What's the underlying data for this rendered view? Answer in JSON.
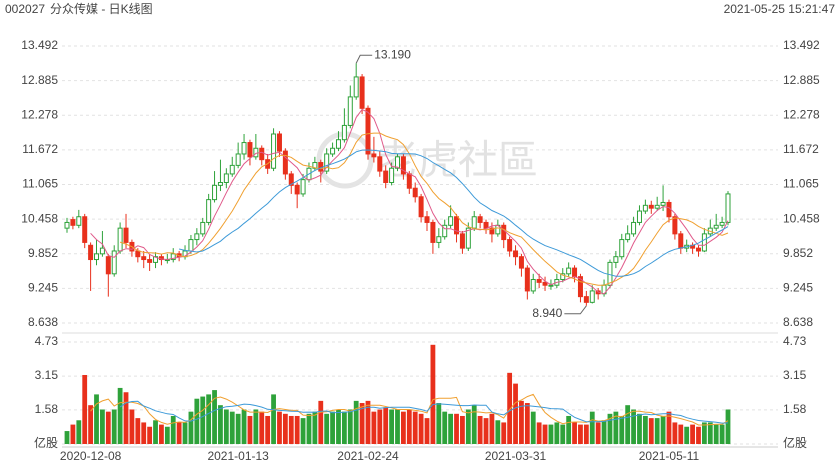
{
  "chart_data": {
    "type": "candlestick",
    "code": "002027",
    "title": "分众传媒 - 日K线图",
    "timestamp": "2021-05-25 15:21:47",
    "watermark": "老虎社區",
    "up_color": "#2ea23a",
    "down_color": "#e8301c",
    "categories": [
      null,
      null,
      null,
      null,
      "2020-12-08",
      null,
      null,
      null,
      null,
      null,
      null,
      null,
      null,
      null,
      null,
      null,
      null,
      null,
      null,
      null,
      null,
      null,
      null,
      null,
      null,
      null,
      null,
      null,
      null,
      "2021-01-13",
      null,
      null,
      null,
      null,
      null,
      null,
      null,
      null,
      null,
      null,
      null,
      null,
      null,
      null,
      null,
      null,
      null,
      null,
      null,
      null,
      null,
      "2021-02-24",
      null,
      null,
      null,
      null,
      null,
      null,
      null,
      null,
      null,
      null,
      null,
      null,
      null,
      null,
      null,
      null,
      null,
      null,
      null,
      null,
      null,
      null,
      null,
      null,
      "2021-03-31",
      null,
      null,
      null,
      null,
      null,
      null,
      null,
      null,
      null,
      null,
      null,
      null,
      null,
      null,
      null,
      null,
      null,
      null,
      null,
      null,
      null,
      null,
      null,
      null,
      null,
      "2021-05-11",
      null,
      null,
      null,
      null,
      null,
      null,
      null,
      null,
      null,
      null
    ],
    "ohlc": [
      [
        10.3,
        10.48,
        10.22,
        10.4
      ],
      [
        10.45,
        10.5,
        10.28,
        10.35
      ],
      [
        10.35,
        10.62,
        10.3,
        10.5
      ],
      [
        10.5,
        10.55,
        9.95,
        10.05
      ],
      [
        10.0,
        10.05,
        9.2,
        9.75
      ],
      [
        9.75,
        10.1,
        9.65,
        9.85
      ],
      [
        9.85,
        10.25,
        9.8,
        9.95
      ],
      [
        9.8,
        9.85,
        9.1,
        9.5
      ],
      [
        9.5,
        10.0,
        9.45,
        9.9
      ],
      [
        9.9,
        10.4,
        9.85,
        10.3
      ],
      [
        10.3,
        10.55,
        9.95,
        10.05
      ],
      [
        10.05,
        10.1,
        9.8,
        9.9
      ],
      [
        9.9,
        9.95,
        9.7,
        9.8
      ],
      [
        9.8,
        9.9,
        9.6,
        9.75
      ],
      [
        9.75,
        9.85,
        9.55,
        9.7
      ],
      [
        9.7,
        9.88,
        9.6,
        9.8
      ],
      [
        9.8,
        9.85,
        9.65,
        9.75
      ],
      [
        9.75,
        9.85,
        9.68,
        9.75
      ],
      [
        9.75,
        9.95,
        9.7,
        9.85
      ],
      [
        9.85,
        9.9,
        9.72,
        9.8
      ],
      [
        9.8,
        10.0,
        9.75,
        9.9
      ],
      [
        9.9,
        10.18,
        9.85,
        10.1
      ],
      [
        10.1,
        10.3,
        10.0,
        10.2
      ],
      [
        10.2,
        10.48,
        10.15,
        10.4
      ],
      [
        10.4,
        10.9,
        10.35,
        10.8
      ],
      [
        10.8,
        11.3,
        10.75,
        11.05
      ],
      [
        11.05,
        11.5,
        10.95,
        11.1
      ],
      [
        11.1,
        11.35,
        11.0,
        11.25
      ],
      [
        11.25,
        11.55,
        11.2,
        11.4
      ],
      [
        11.4,
        11.8,
        11.35,
        11.6
      ],
      [
        11.6,
        11.95,
        11.5,
        11.8
      ],
      [
        11.8,
        11.85,
        11.4,
        11.55
      ],
      [
        11.55,
        11.95,
        11.5,
        11.7
      ],
      [
        11.7,
        11.75,
        11.4,
        11.5
      ],
      [
        11.5,
        11.6,
        11.25,
        11.35
      ],
      [
        11.35,
        12.05,
        11.3,
        11.95
      ],
      [
        11.95,
        12.0,
        11.55,
        11.65
      ],
      [
        11.65,
        11.7,
        11.15,
        11.25
      ],
      [
        11.25,
        11.3,
        10.9,
        11.05
      ],
      [
        11.05,
        11.1,
        10.65,
        10.9
      ],
      [
        10.9,
        11.25,
        10.85,
        11.15
      ],
      [
        11.15,
        11.45,
        11.1,
        11.35
      ],
      [
        11.35,
        11.55,
        11.3,
        11.45
      ],
      [
        11.45,
        11.5,
        11.1,
        11.3
      ],
      [
        11.3,
        11.7,
        11.25,
        11.6
      ],
      [
        11.6,
        11.8,
        11.55,
        11.7
      ],
      [
        11.7,
        12.0,
        11.65,
        11.85
      ],
      [
        11.85,
        12.4,
        11.8,
        12.1
      ],
      [
        12.1,
        12.8,
        12.05,
        12.6
      ],
      [
        12.6,
        13.19,
        12.55,
        12.95
      ],
      [
        12.95,
        13.0,
        12.3,
        12.4
      ],
      [
        12.4,
        12.45,
        11.5,
        11.6
      ],
      [
        11.6,
        11.9,
        11.45,
        11.55
      ],
      [
        11.55,
        11.65,
        11.2,
        11.3
      ],
      [
        11.3,
        11.4,
        11.0,
        11.1
      ],
      [
        11.1,
        11.45,
        11.05,
        11.35
      ],
      [
        11.35,
        11.6,
        11.3,
        11.55
      ],
      [
        11.55,
        11.6,
        11.15,
        11.25
      ],
      [
        11.25,
        11.3,
        10.9,
        11.0
      ],
      [
        11.0,
        11.1,
        10.75,
        10.85
      ],
      [
        10.85,
        10.9,
        10.4,
        10.5
      ],
      [
        10.5,
        10.6,
        10.25,
        10.4
      ],
      [
        10.4,
        10.45,
        9.85,
        10.05
      ],
      [
        10.05,
        10.3,
        9.95,
        10.15
      ],
      [
        10.15,
        10.45,
        10.1,
        10.35
      ],
      [
        10.35,
        10.7,
        10.3,
        10.5
      ],
      [
        10.5,
        10.55,
        10.05,
        10.2
      ],
      [
        10.2,
        10.25,
        9.85,
        9.95
      ],
      [
        9.95,
        10.4,
        9.9,
        10.3
      ],
      [
        10.3,
        10.6,
        10.25,
        10.5
      ],
      [
        10.5,
        10.55,
        10.3,
        10.4
      ],
      [
        10.4,
        10.45,
        10.2,
        10.3
      ],
      [
        10.3,
        10.4,
        10.05,
        10.2
      ],
      [
        10.2,
        10.45,
        10.15,
        10.35
      ],
      [
        10.35,
        10.4,
        9.95,
        10.1
      ],
      [
        10.1,
        10.15,
        9.8,
        9.9
      ],
      [
        9.9,
        10.0,
        9.65,
        9.8
      ],
      [
        9.8,
        9.85,
        9.45,
        9.6
      ],
      [
        9.6,
        9.65,
        9.05,
        9.2
      ],
      [
        9.2,
        9.5,
        9.15,
        9.4
      ],
      [
        9.4,
        9.5,
        9.25,
        9.35
      ],
      [
        9.35,
        9.45,
        9.2,
        9.3
      ],
      [
        9.3,
        9.4,
        9.22,
        9.3
      ],
      [
        9.3,
        9.5,
        9.25,
        9.4
      ],
      [
        9.4,
        9.6,
        9.35,
        9.5
      ],
      [
        9.5,
        9.7,
        9.45,
        9.6
      ],
      [
        9.6,
        9.65,
        9.35,
        9.45
      ],
      [
        9.45,
        9.5,
        9.0,
        9.1
      ],
      [
        9.1,
        9.2,
        8.94,
        9.0
      ],
      [
        9.0,
        9.3,
        8.98,
        9.2
      ],
      [
        9.2,
        9.25,
        9.05,
        9.15
      ],
      [
        9.15,
        9.4,
        9.1,
        9.3
      ],
      [
        9.3,
        9.75,
        9.25,
        9.7
      ],
      [
        9.7,
        9.9,
        9.6,
        9.8
      ],
      [
        9.8,
        10.2,
        9.75,
        10.1
      ],
      [
        10.1,
        10.35,
        10.05,
        10.2
      ],
      [
        10.2,
        10.5,
        10.15,
        10.4
      ],
      [
        10.4,
        10.7,
        10.35,
        10.6
      ],
      [
        10.6,
        10.8,
        10.55,
        10.7
      ],
      [
        10.7,
        10.78,
        10.55,
        10.65
      ],
      [
        10.65,
        10.85,
        10.6,
        10.7
      ],
      [
        10.7,
        11.05,
        10.6,
        10.75
      ],
      [
        10.75,
        10.8,
        10.4,
        10.5
      ],
      [
        10.5,
        10.55,
        10.1,
        10.2
      ],
      [
        10.2,
        10.25,
        9.85,
        9.95
      ],
      [
        9.95,
        10.1,
        9.88,
        10.0
      ],
      [
        10.0,
        10.05,
        9.85,
        9.95
      ],
      [
        9.95,
        10.0,
        9.8,
        9.9
      ],
      [
        9.9,
        10.3,
        9.88,
        10.2
      ],
      [
        10.2,
        10.45,
        10.15,
        10.3
      ],
      [
        10.3,
        10.55,
        10.25,
        10.35
      ],
      [
        10.35,
        10.5,
        10.3,
        10.4
      ],
      [
        10.4,
        10.95,
        10.35,
        10.9
      ]
    ],
    "volume": [
      0.6,
      0.9,
      1.1,
      3.2,
      1.8,
      2.3,
      1.6,
      1.5,
      1.6,
      2.6,
      2.4,
      1.6,
      1.2,
      1.0,
      0.8,
      1.1,
      0.9,
      0.8,
      1.3,
      1.0,
      1.0,
      1.5,
      2.1,
      2.2,
      2.3,
      2.5,
      1.8,
      1.6,
      1.5,
      1.4,
      1.6,
      1.3,
      1.6,
      1.5,
      1.3,
      2.3,
      1.5,
      1.4,
      1.3,
      1.3,
      1.2,
      1.4,
      1.5,
      2.0,
      1.4,
      1.5,
      1.6,
      1.5,
      1.6,
      2.0,
      1.9,
      2.0,
      1.5,
      1.6,
      1.7,
      1.6,
      1.6,
      1.5,
      1.6,
      1.5,
      1.4,
      1.2,
      4.6,
      1.9,
      1.5,
      1.4,
      1.4,
      1.3,
      1.6,
      1.8,
      1.3,
      1.2,
      1.4,
      1.1,
      1.0,
      3.3,
      2.8,
      2.0,
      1.9,
      1.5,
      1.0,
      0.9,
      0.9,
      1.0,
      0.9,
      1.3,
      1.0,
      0.9,
      0.9,
      1.5,
      1.0,
      1.1,
      1.4,
      1.5,
      1.3,
      1.8,
      1.6,
      1.4,
      1.3,
      1.2,
      1.2,
      1.3,
      1.5,
      1.0,
      0.9,
      0.8,
      0.9,
      0.8,
      1.0,
      1.0,
      0.9,
      0.9,
      1.6
    ],
    "ylim": [
      8.638,
      13.492
    ],
    "yticks": [
      {
        "value": 8.638,
        "label": "8.638"
      },
      9.245,
      9.852,
      {
        "value": 10.458,
        "label": "10.458"
      },
      11.065,
      11.672,
      12.278,
      12.885,
      13.492
    ],
    "vlim": [
      0,
      4.73
    ],
    "vticks": [
      {
        "value": 0,
        "label": "亿股"
      },
      1.58,
      3.15,
      4.73
    ],
    "price_ma": [
      {
        "period": 5,
        "color": "#e05a8a"
      },
      {
        "period": 10,
        "color": "#f0a030"
      },
      {
        "period": 20,
        "color": "#3d9ad8"
      }
    ],
    "volume_ma": [
      {
        "period": 5,
        "color": "#f0a030"
      },
      {
        "period": 10,
        "color": "#3d9ad8"
      }
    ],
    "annotations": [
      {
        "value": 13.19,
        "label": "13.190"
      },
      {
        "value": 8.94,
        "label": "8.940"
      }
    ],
    "grid": true
  }
}
